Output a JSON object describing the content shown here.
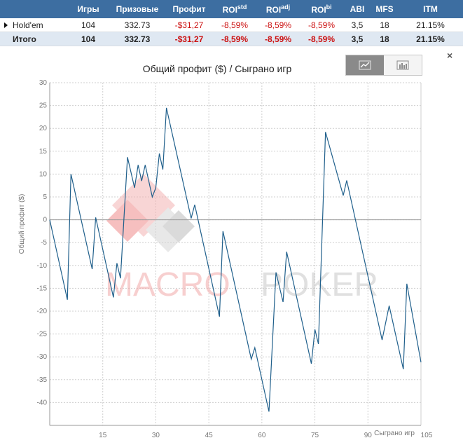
{
  "table": {
    "headers": [
      "",
      "Игры",
      "Призовые",
      "Профит",
      "ROI",
      "ROI",
      "ROI",
      "ABI",
      "MFS",
      "ITM"
    ],
    "roi_sups": [
      "std",
      "adj",
      "bi"
    ],
    "rows": [
      {
        "name": "Hold'em",
        "games": "104",
        "prize": "332.73",
        "profit": "-$31,27",
        "roi_std": "-8,59%",
        "roi_adj": "-8,59%",
        "roi_bi": "-8,59%",
        "abi": "3,5",
        "mfs": "18",
        "itm": "21.15%"
      },
      {
        "name": "Итого",
        "games": "104",
        "prize": "332.73",
        "profit": "-$31,27",
        "roi_std": "-8,59%",
        "roi_adj": "-8,59%",
        "roi_bi": "-8,59%",
        "abi": "3,5",
        "mfs": "18",
        "itm": "21.15%"
      }
    ]
  },
  "controls": {
    "close_glyph": "×",
    "line_view_icon": "line-chart-icon",
    "bar_view_icon": "bar-chart-icon"
  },
  "watermark": {
    "part1": "MACRO",
    "part2": "POKER"
  },
  "colors": {
    "header_bg": "#3d6ea1",
    "negative": "#cc1111",
    "line": "#1f5f8b",
    "total_row": "#dfe8f2"
  },
  "chart_data": {
    "type": "line",
    "title": "Общий профит ($) / Сыграно игр",
    "xlabel": "Сыграно игр",
    "ylabel": "Общий профит ($)",
    "xlim": [
      0,
      105
    ],
    "ylim": [
      -45,
      30
    ],
    "xticks": [
      15,
      30,
      45,
      60,
      75,
      90,
      105
    ],
    "yticks": [
      30,
      25,
      20,
      15,
      10,
      5,
      0,
      -5,
      -10,
      -15,
      -20,
      -25,
      -30,
      -35,
      -40
    ],
    "grid": true,
    "series": [
      {
        "values": [
          [
            0,
            0
          ],
          [
            5,
            -17.5
          ],
          [
            6,
            10
          ],
          [
            12,
            -10.8
          ],
          [
            13,
            0.5
          ],
          [
            18,
            -17
          ],
          [
            19,
            -9.5
          ],
          [
            20,
            -12.8
          ],
          [
            22,
            13.7
          ],
          [
            24,
            7
          ],
          [
            25,
            12
          ],
          [
            26,
            8.5
          ],
          [
            27,
            12
          ],
          [
            29,
            5
          ],
          [
            30,
            7
          ],
          [
            31,
            14.5
          ],
          [
            32,
            11
          ],
          [
            33,
            24.5
          ],
          [
            40,
            0.3
          ],
          [
            41,
            3.3
          ],
          [
            48,
            -21.2
          ],
          [
            49,
            -2.5
          ],
          [
            57,
            -30.5
          ],
          [
            58,
            -28
          ],
          [
            62,
            -42
          ],
          [
            64,
            -11.5
          ],
          [
            66,
            -18
          ],
          [
            67,
            -7
          ],
          [
            74,
            -31.5
          ],
          [
            75,
            -24
          ],
          [
            76,
            -27.2
          ],
          [
            78,
            19.2
          ],
          [
            83,
            5.3
          ],
          [
            84,
            8.6
          ],
          [
            94,
            -26.3
          ],
          [
            96,
            -18.8
          ],
          [
            100,
            -32.7
          ],
          [
            101,
            -14
          ],
          [
            105,
            -31.2
          ]
        ]
      }
    ]
  }
}
